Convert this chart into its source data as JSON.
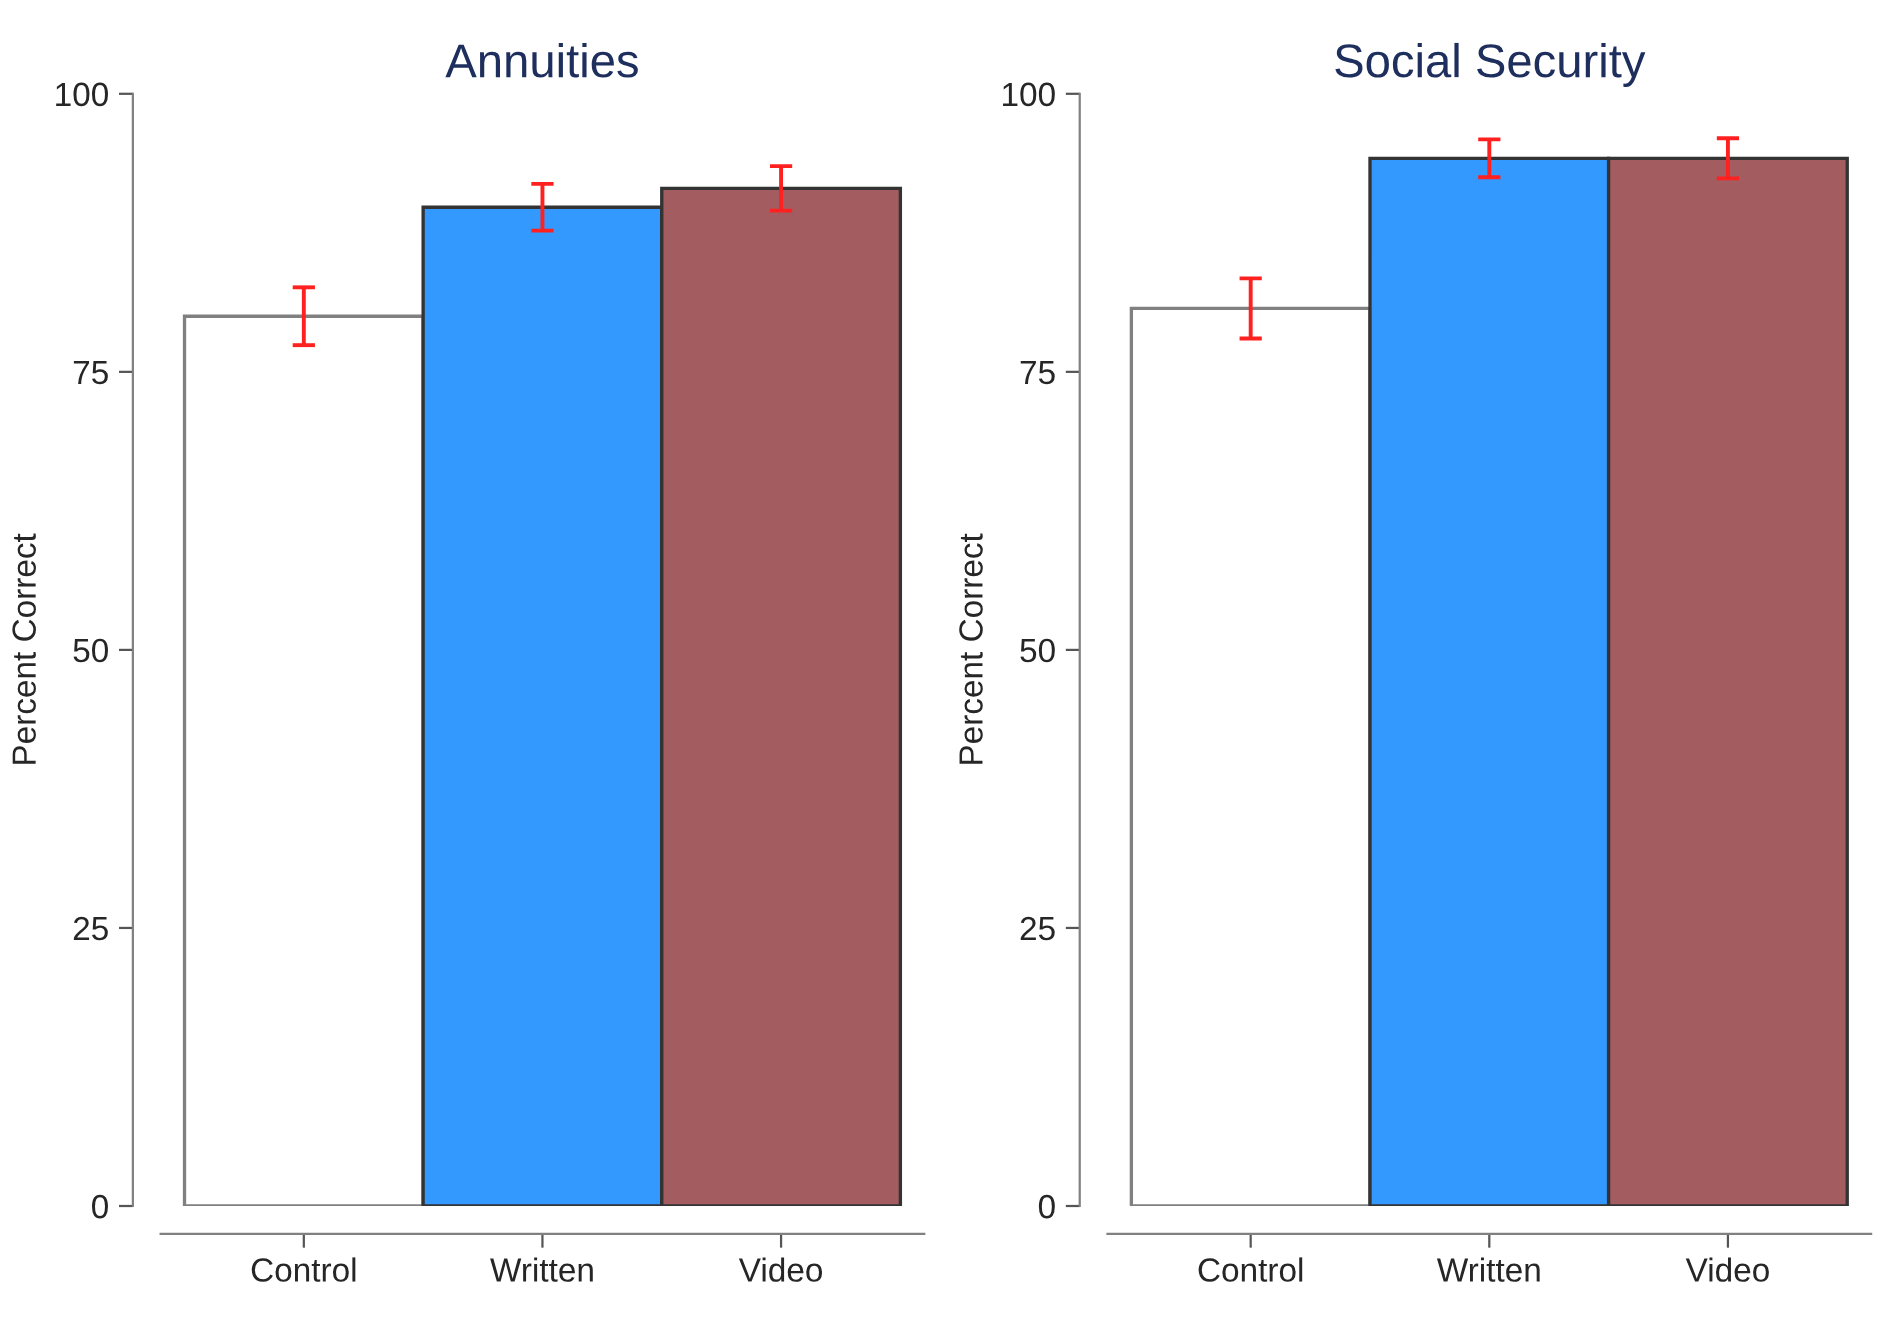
{
  "chart_data": [
    {
      "type": "bar",
      "title": "Annuities",
      "ylabel": "Percent Correct",
      "categories": [
        "Control",
        "Written",
        "Video"
      ],
      "values": [
        80,
        89.8,
        91.5
      ],
      "errors": [
        2.6,
        2.1,
        2.0
      ],
      "colors": [
        "#ffffff",
        "#3399ff",
        "#a35c60"
      ],
      "ylim": [
        0,
        100
      ],
      "yticks": [
        0,
        25,
        50,
        75,
        100
      ],
      "grid": false,
      "legend": false
    },
    {
      "type": "bar",
      "title": "Social Security",
      "ylabel": "Percent Correct",
      "categories": [
        "Control",
        "Written",
        "Video"
      ],
      "values": [
        80.7,
        94.2,
        94.2
      ],
      "errors": [
        2.7,
        1.7,
        1.8
      ],
      "colors": [
        "#ffffff",
        "#3399ff",
        "#a35c60"
      ],
      "ylim": [
        0,
        100
      ],
      "yticks": [
        0,
        25,
        50,
        75,
        100
      ],
      "grid": false,
      "legend": false
    }
  ]
}
